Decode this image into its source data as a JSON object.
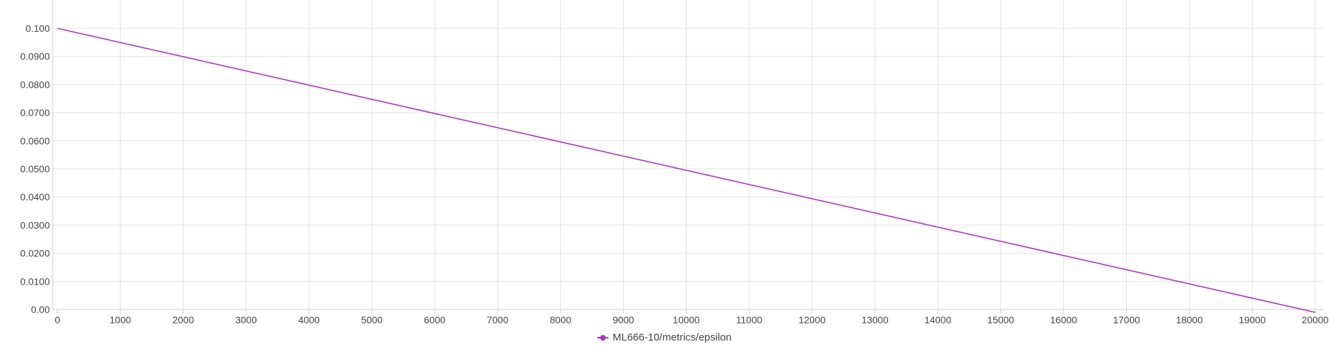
{
  "chart_data": {
    "type": "line",
    "x_ticks": [
      0,
      1000,
      2000,
      3000,
      4000,
      5000,
      6000,
      7000,
      8000,
      9000,
      10000,
      11000,
      12000,
      13000,
      14000,
      15000,
      16000,
      17000,
      18000,
      19000,
      20000
    ],
    "y_ticks": [
      "0.00",
      "0.0100",
      "0.0200",
      "0.0300",
      "0.0400",
      "0.0500",
      "0.0600",
      "0.0700",
      "0.0800",
      "0.0900",
      "0.100"
    ],
    "y_tick_values": [
      0,
      0.01,
      0.02,
      0.03,
      0.04,
      0.05,
      0.06,
      0.07,
      0.08,
      0.09,
      0.1
    ],
    "xlim": [
      0,
      20000
    ],
    "ylim": [
      0,
      0.1
    ],
    "grid": true,
    "legend_position": "bottom-center",
    "series": [
      {
        "name": "ML666-10/metrics/epsilon",
        "color": "#b32ccc",
        "x": [
          0,
          20000
        ],
        "y": [
          0.1,
          -0.001
        ]
      }
    ]
  }
}
